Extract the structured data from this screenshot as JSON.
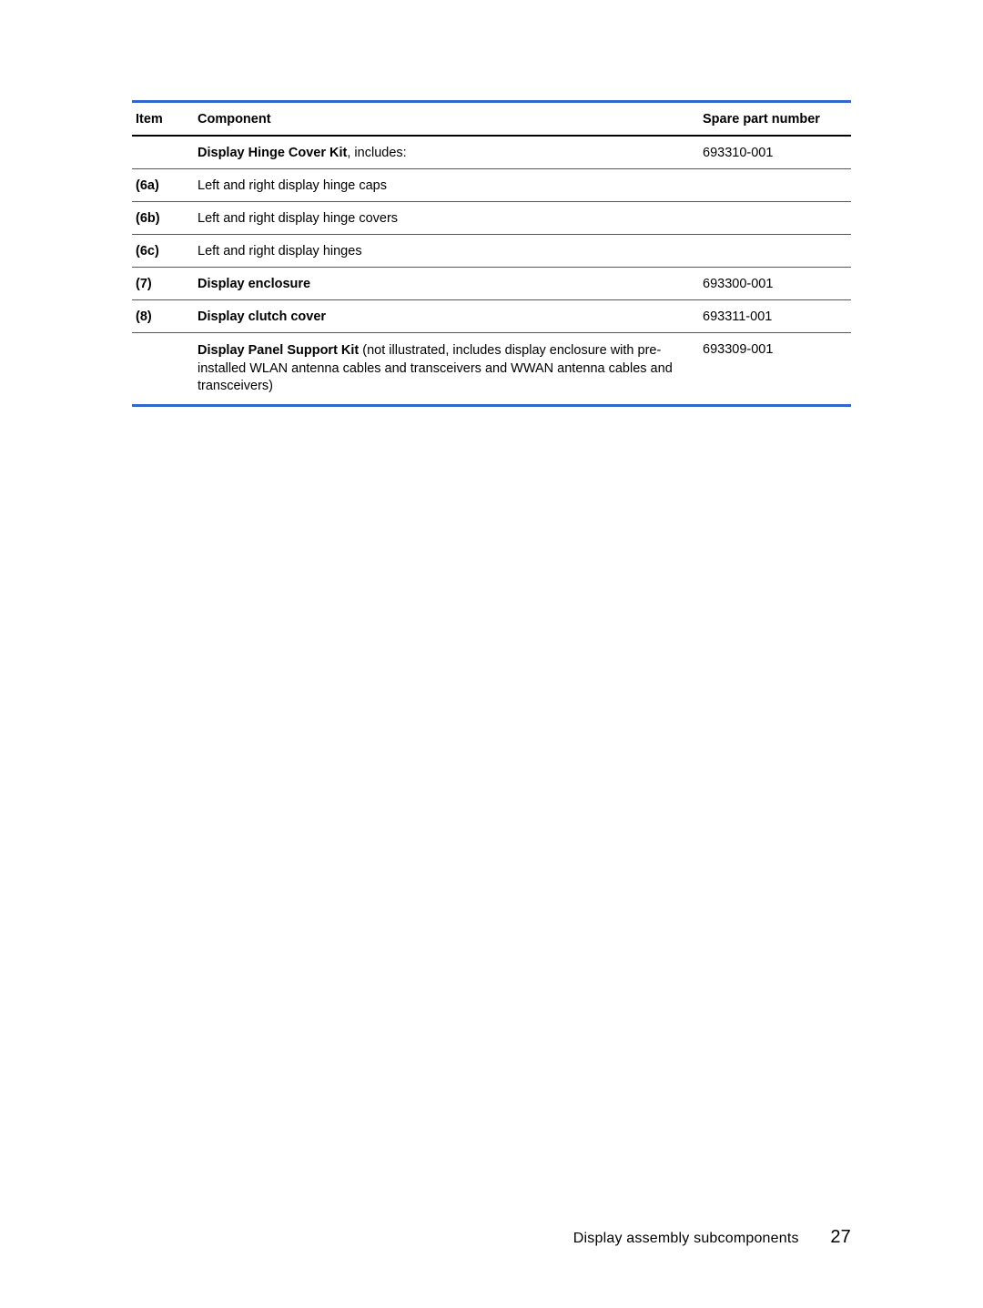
{
  "table": {
    "headers": {
      "item": "Item",
      "component": "Component",
      "spare": "Spare part number"
    },
    "rows": [
      {
        "item": "",
        "component_bold": "Display Hinge Cover Kit",
        "component_rest": ", includes:",
        "spare": "693310-001"
      },
      {
        "item": "(6a)",
        "component": "Left and right display hinge caps",
        "spare": ""
      },
      {
        "item": "(6b)",
        "component": "Left and right display hinge covers",
        "spare": ""
      },
      {
        "item": "(6c)",
        "component": "Left and right display hinges",
        "spare": ""
      },
      {
        "item": "(7)",
        "component_bold": "Display enclosure",
        "component_rest": "",
        "spare": "693300-001"
      },
      {
        "item": "(8)",
        "component_bold": "Display clutch cover",
        "component_rest": "",
        "spare": "693311-001"
      },
      {
        "item": "",
        "component_bold": "Display Panel Support Kit",
        "component_rest": " (not illustrated, includes display enclosure with pre-installed WLAN antenna cables and transceivers and WWAN antenna cables and transceivers)",
        "spare": "693309-001"
      }
    ]
  },
  "footer": {
    "text": "Display assembly subcomponents",
    "page": "27"
  }
}
